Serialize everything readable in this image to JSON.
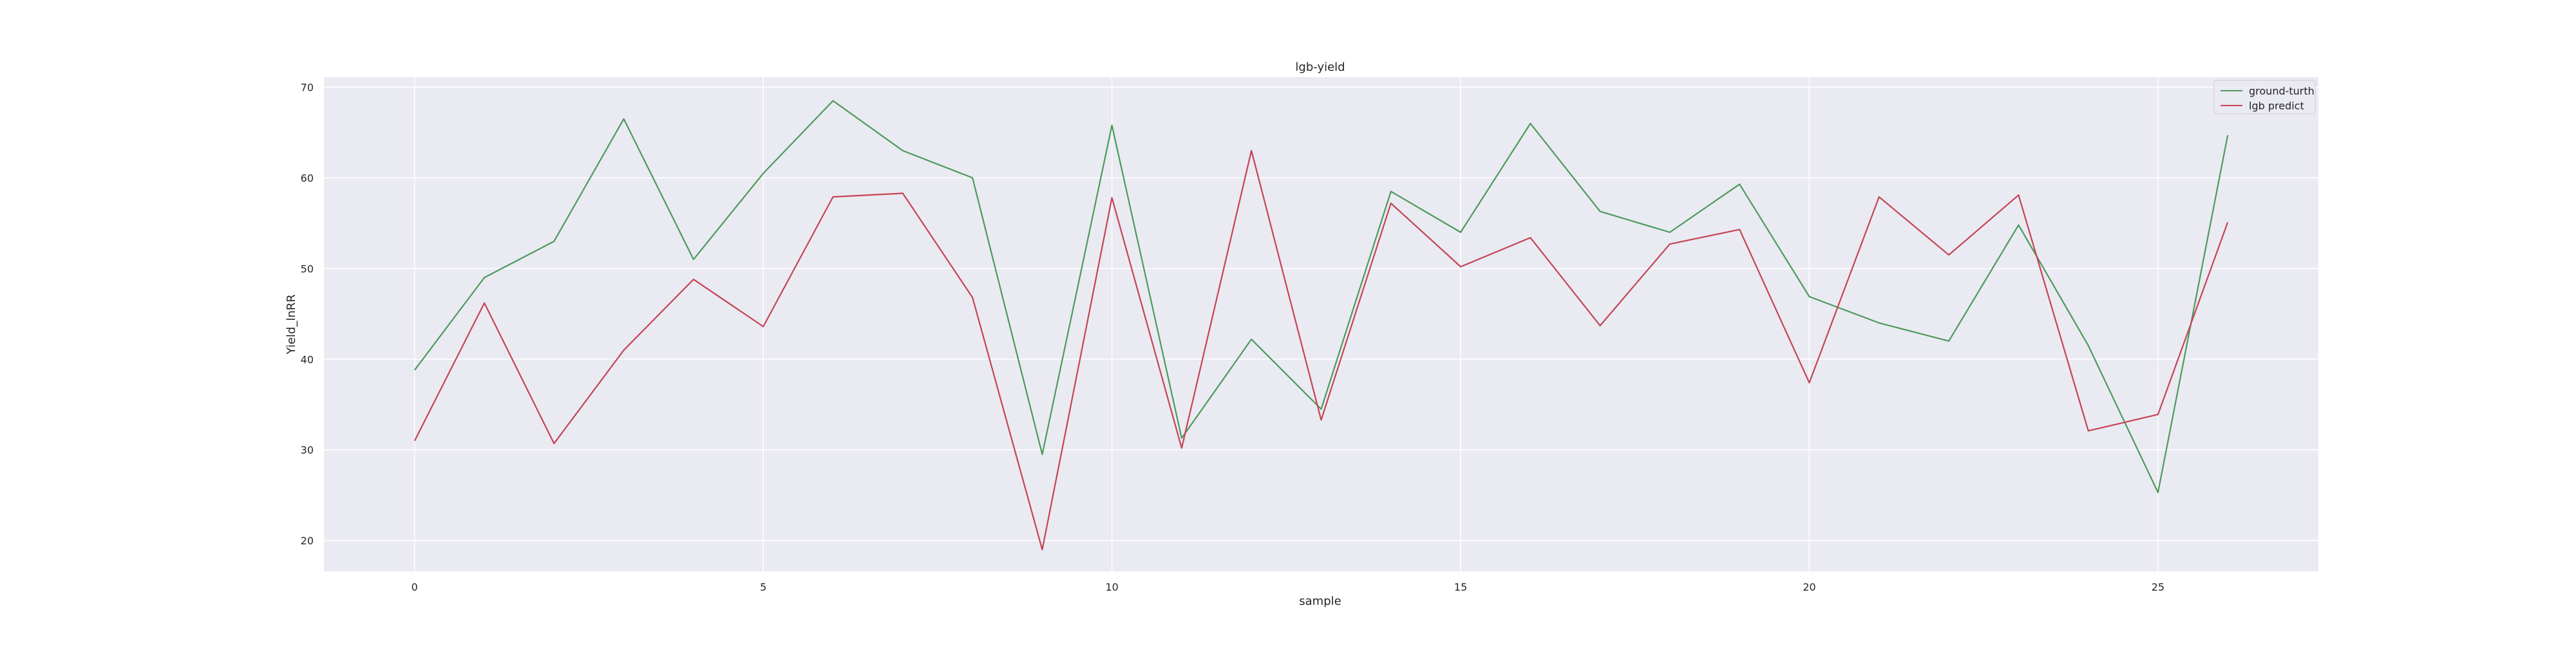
{
  "colors": {
    "figure_background": "#ffffff",
    "plot_background": "#eaeaf2",
    "grid": "#ffffff",
    "ground_truth": "#4c9a5b",
    "predict": "#c44455"
  },
  "chart_data": {
    "type": "line",
    "title": "lgb-yield",
    "xlabel": "sample",
    "ylabel": "Yield_lnRR",
    "xlim": [
      -1.3,
      27.3
    ],
    "ylim": [
      16.6,
      71.1
    ],
    "grid": true,
    "legend_position": "top-right",
    "x_ticks": [
      0,
      5,
      10,
      15,
      20,
      25
    ],
    "y_ticks": [
      20,
      30,
      40,
      50,
      60,
      70
    ],
    "x": [
      0,
      1,
      2,
      3,
      4,
      5,
      6,
      7,
      8,
      9,
      10,
      11,
      12,
      13,
      14,
      15,
      16,
      17,
      18,
      19,
      20,
      21,
      22,
      23,
      24,
      25,
      26
    ],
    "series": [
      {
        "name": "ground-turth",
        "color": "#4c9a5b",
        "values": [
          38.8,
          49.0,
          53.0,
          66.5,
          51.0,
          60.5,
          68.5,
          63.0,
          60.0,
          29.5,
          65.8,
          31.3,
          42.2,
          34.5,
          58.5,
          54.0,
          66.0,
          56.3,
          54.0,
          59.3,
          46.9,
          44.0,
          42.0,
          54.8,
          41.5,
          25.3,
          64.7
        ]
      },
      {
        "name": "lgb predict",
        "color": "#c44455",
        "values": [
          31.0,
          46.2,
          30.7,
          41.0,
          48.8,
          43.6,
          57.9,
          58.3,
          46.8,
          19.0,
          57.8,
          30.2,
          63.0,
          33.3,
          57.2,
          50.2,
          53.4,
          43.7,
          52.7,
          54.3,
          37.4,
          57.9,
          51.5,
          58.1,
          32.1,
          33.9,
          55.1
        ]
      }
    ]
  }
}
